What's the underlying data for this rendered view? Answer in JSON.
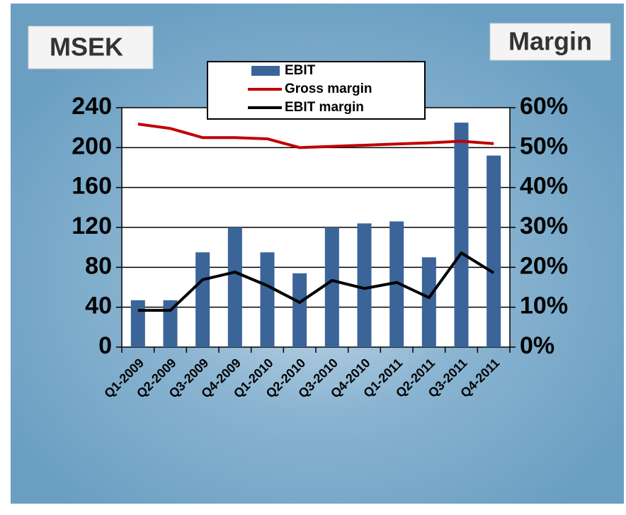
{
  "chart_data": {
    "type": "bar_line",
    "left_axis_title": "MSEK",
    "right_axis_title": "Margin",
    "categories": [
      "Q1-2009",
      "Q2-2009",
      "Q3-2009",
      "Q4-2009",
      "Q1-2010",
      "Q2-2010",
      "Q3-2010",
      "Q4-2010",
      "Q1-2011",
      "Q2-2011",
      "Q3-2011",
      "Q4-2011"
    ],
    "series": [
      {
        "name": "EBIT",
        "type": "bar",
        "color": "#3b6499",
        "values": [
          47,
          47,
          95,
          120,
          95,
          74,
          120,
          124,
          126,
          90,
          225,
          192
        ]
      },
      {
        "name": "Gross margin",
        "type": "line",
        "axis": "y2",
        "color": "#c00000",
        "values": [
          55.9,
          54.8,
          52.5,
          52.5,
          52.2,
          50.0,
          50.3,
          50.6,
          50.9,
          51.2,
          51.6,
          51.0
        ]
      },
      {
        "name": "EBIT margin",
        "type": "line",
        "axis": "y2",
        "color": "#000000",
        "values": [
          9.2,
          9.2,
          16.9,
          18.8,
          15.4,
          11.2,
          16.7,
          14.7,
          16.2,
          12.4,
          23.6,
          18.6
        ]
      }
    ],
    "ylim": [
      0,
      240
    ],
    "yticks": [
      0,
      40,
      80,
      120,
      160,
      200,
      240
    ],
    "y2lim": [
      0,
      60
    ],
    "y2ticks": [
      {
        "value": 0,
        "label": "0%"
      },
      {
        "value": 10,
        "label": "10%"
      },
      {
        "value": 20,
        "label": "20%"
      },
      {
        "value": 30,
        "label": "30%"
      },
      {
        "value": 40,
        "label": "40%"
      },
      {
        "value": 50,
        "label": "50%"
      },
      {
        "value": 60,
        "label": "60%"
      }
    ],
    "grid": true
  }
}
